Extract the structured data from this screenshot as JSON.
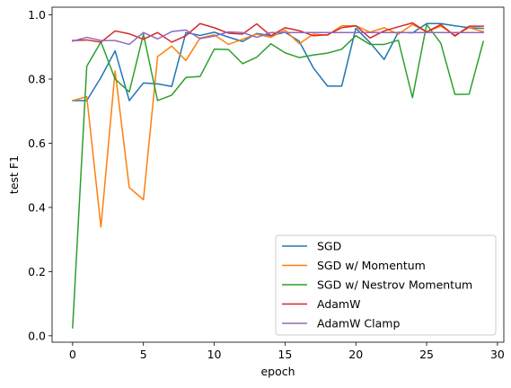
{
  "chart_data": {
    "type": "line",
    "title": "",
    "xlabel": "epoch",
    "ylabel": "test F1",
    "xlim": [
      -1.45,
      30.45
    ],
    "ylim": [
      -0.02,
      1.024
    ],
    "xticks": [
      0,
      5,
      10,
      15,
      20,
      25,
      30
    ],
    "yticks": [
      0.0,
      0.2,
      0.4,
      0.6,
      0.8,
      1.0
    ],
    "xtick_labels": [
      "0",
      "5",
      "10",
      "15",
      "20",
      "25",
      "30"
    ],
    "ytick_labels": [
      "0.0",
      "0.2",
      "0.4",
      "0.6",
      "0.8",
      "1.0"
    ],
    "grid": false,
    "legend_position": "lower-right",
    "x": [
      0,
      1,
      2,
      3,
      4,
      5,
      6,
      7,
      8,
      9,
      10,
      11,
      12,
      13,
      14,
      15,
      16,
      17,
      18,
      19,
      20,
      21,
      22,
      23,
      24,
      25,
      26,
      27,
      28,
      29
    ],
    "series": [
      {
        "name": "SGD",
        "color": "#1f77b4",
        "values": [
          0.733,
          0.733,
          0.805,
          0.888,
          0.733,
          0.788,
          0.785,
          0.777,
          0.945,
          0.936,
          0.946,
          0.931,
          0.917,
          0.942,
          0.935,
          0.946,
          0.918,
          0.835,
          0.778,
          0.778,
          0.958,
          0.914,
          0.861,
          0.946,
          0.944,
          0.973,
          0.973,
          0.966,
          0.96,
          0.958
        ]
      },
      {
        "name": "SGD w/ Momentum",
        "color": "#ff7f0e",
        "values": [
          0.733,
          0.745,
          0.339,
          0.825,
          0.462,
          0.424,
          0.87,
          0.903,
          0.858,
          0.928,
          0.938,
          0.908,
          0.924,
          0.94,
          0.93,
          0.953,
          0.91,
          0.94,
          0.937,
          0.966,
          0.966,
          0.946,
          0.96,
          0.94,
          0.97,
          0.947,
          0.965,
          0.937,
          0.96,
          0.948
        ]
      },
      {
        "name": "SGD w/ Nestrov Momentum",
        "color": "#2ca02c",
        "values": [
          0.025,
          0.84,
          0.916,
          0.8,
          0.76,
          0.94,
          0.733,
          0.75,
          0.805,
          0.808,
          0.893,
          0.892,
          0.848,
          0.868,
          0.91,
          0.882,
          0.867,
          0.875,
          0.881,
          0.893,
          0.935,
          0.908,
          0.908,
          0.921,
          0.742,
          0.97,
          0.912,
          0.752,
          0.753,
          0.917
        ]
      },
      {
        "name": "AdamW",
        "color": "#d62728",
        "values": [
          0.92,
          0.922,
          0.915,
          0.95,
          0.941,
          0.924,
          0.945,
          0.915,
          0.935,
          0.973,
          0.96,
          0.943,
          0.94,
          0.972,
          0.935,
          0.96,
          0.951,
          0.935,
          0.938,
          0.96,
          0.966,
          0.928,
          0.95,
          0.963,
          0.975,
          0.947,
          0.97,
          0.934,
          0.965,
          0.965
        ]
      },
      {
        "name": "AdamW Clamp",
        "color": "#9467bd",
        "values": [
          0.918,
          0.93,
          0.92,
          0.92,
          0.908,
          0.945,
          0.925,
          0.948,
          0.953,
          0.926,
          0.934,
          0.947,
          0.945,
          0.93,
          0.945,
          0.945,
          0.945,
          0.945,
          0.945,
          0.945,
          0.945,
          0.945,
          0.945,
          0.945,
          0.945,
          0.945,
          0.945,
          0.945,
          0.945,
          0.945
        ]
      }
    ]
  }
}
